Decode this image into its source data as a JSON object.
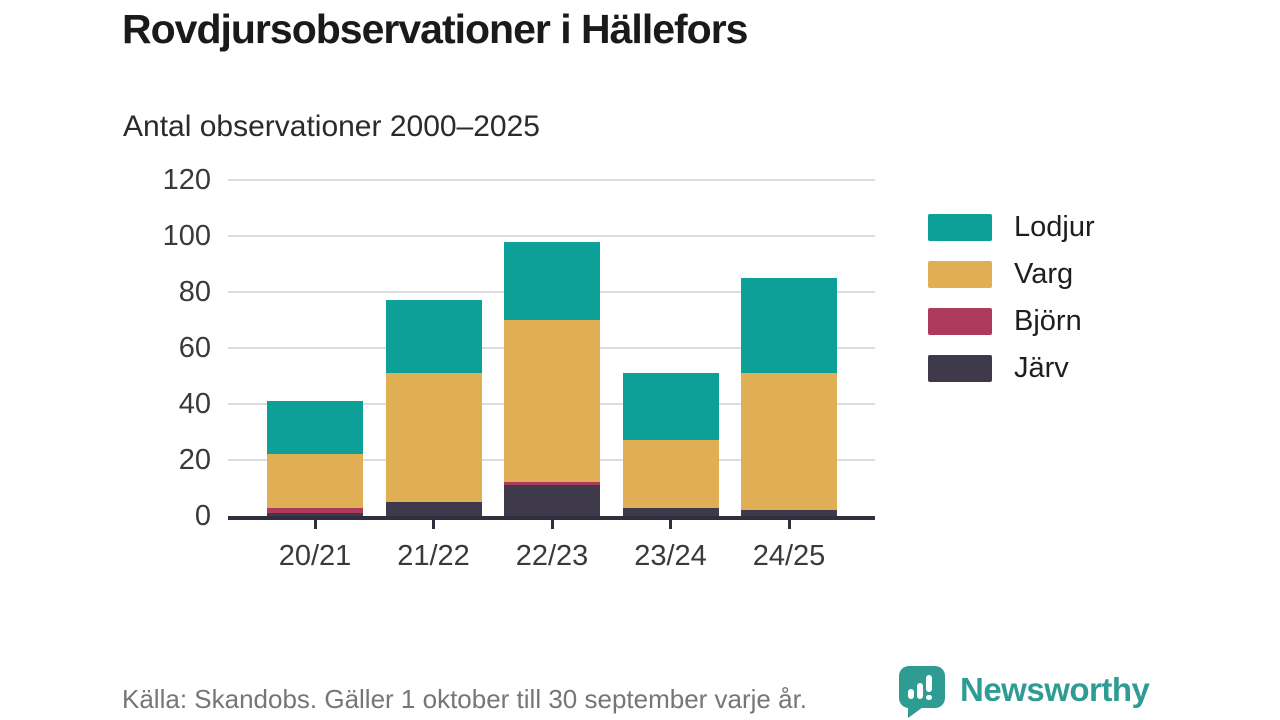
{
  "header": {
    "title": "Rovdjursobservationer i Hällefors",
    "subtitle": "Antal observationer 2000–2025"
  },
  "footer": {
    "source": "Källa: Skandobs. Gäller 1 oktober till 30 september varje år.",
    "brand": "Newsworthy"
  },
  "colors": {
    "lodjur": "#0da098",
    "varg": "#dfae55",
    "bjorn": "#ad3a5d",
    "jarv": "#3e3a4b",
    "axis": "#312e3d",
    "gridline": "#dcdcdc",
    "brand_teal": "#2f9c94"
  },
  "chart_data": {
    "type": "bar",
    "stacked": true,
    "title": "Rovdjursobservationer i Hällefors",
    "subtitle": "Antal observationer 2000–2025",
    "categories": [
      "20/21",
      "21/22",
      "22/23",
      "23/24",
      "24/25"
    ],
    "series": [
      {
        "name": "Järv",
        "color_key": "jarv",
        "values": [
          1,
          5,
          11,
          3,
          2
        ]
      },
      {
        "name": "Björn",
        "color_key": "bjorn",
        "values": [
          2,
          0,
          1,
          0,
          0
        ]
      },
      {
        "name": "Varg",
        "color_key": "varg",
        "values": [
          19,
          46,
          58,
          24,
          49
        ]
      },
      {
        "name": "Lodjur",
        "color_key": "lodjur",
        "values": [
          19,
          26,
          28,
          24,
          34
        ]
      }
    ],
    "totals": [
      41,
      77,
      98,
      51,
      85
    ],
    "xlabel": "",
    "ylabel": "",
    "y_ticks": [
      0,
      20,
      40,
      60,
      80,
      100,
      120
    ],
    "ylim": [
      0,
      120
    ],
    "grid": true,
    "legend": [
      "Lodjur",
      "Varg",
      "Björn",
      "Järv"
    ],
    "legend_position": "right"
  }
}
